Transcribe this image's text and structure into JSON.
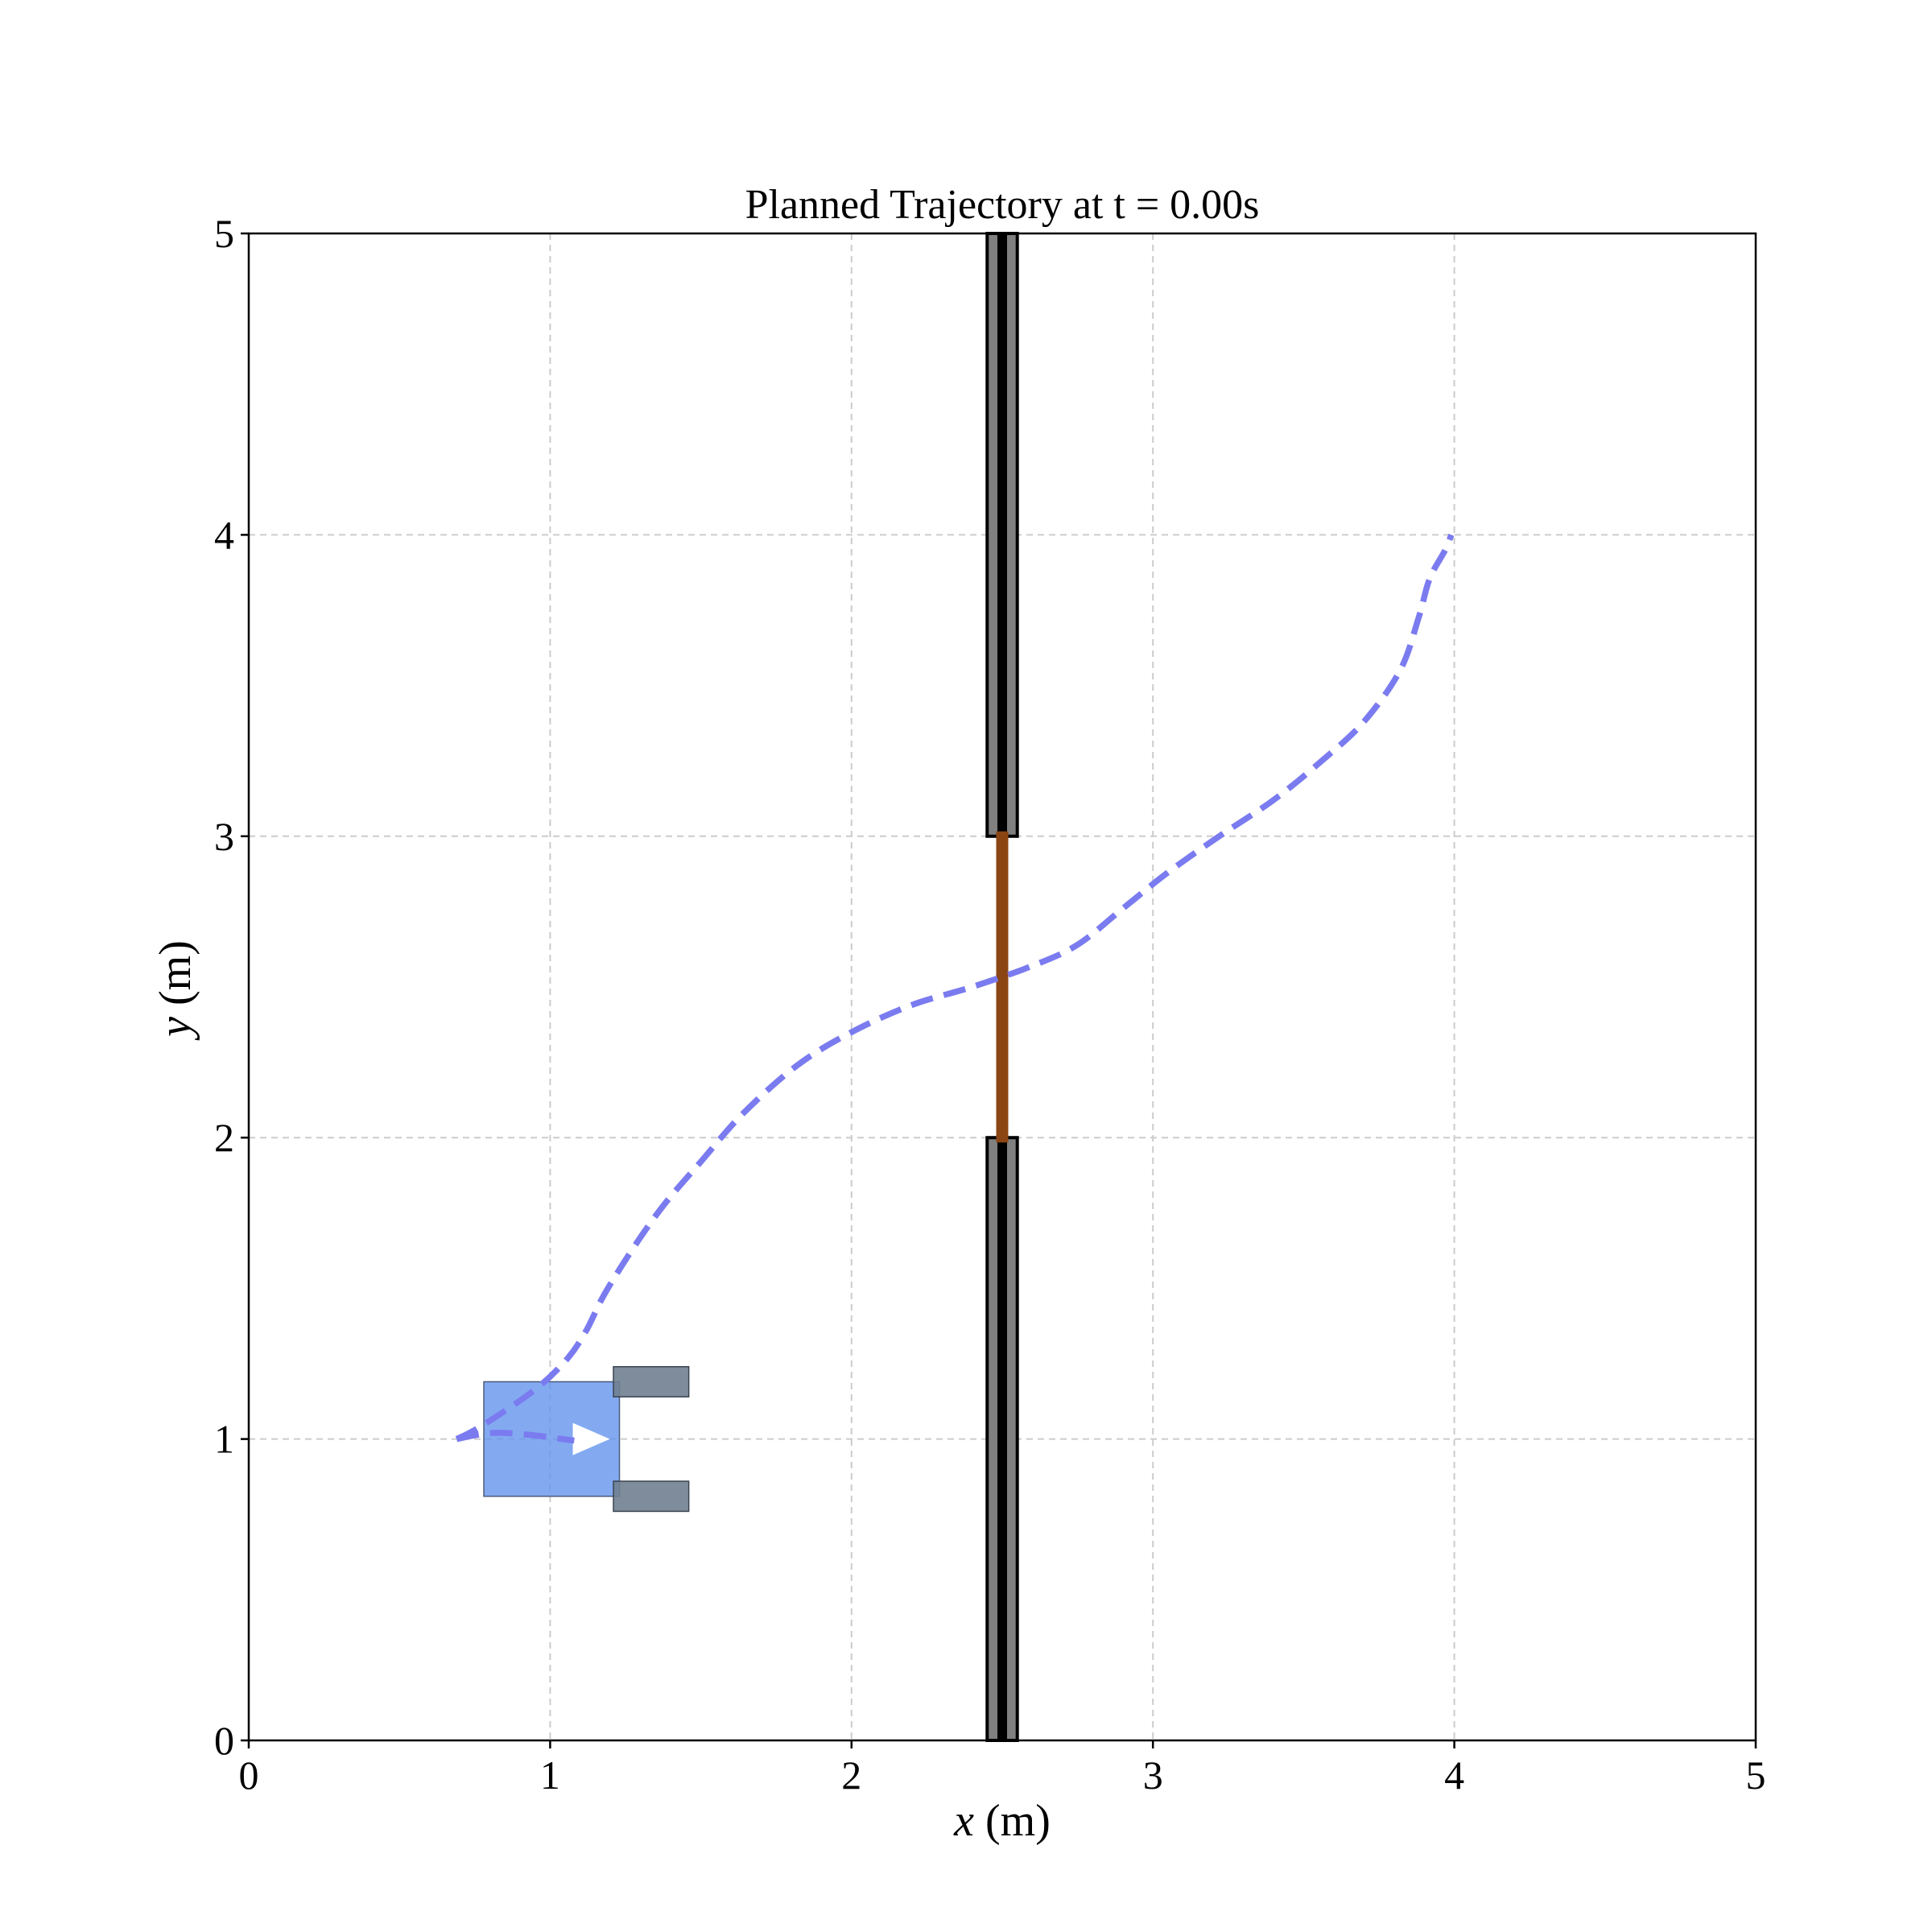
{
  "chart_data": {
    "type": "line",
    "title": "Planned Trajectory at t = 0.00s",
    "xlabel_var": "x",
    "xlabel_unit": " (m)",
    "ylabel_var": "y",
    "ylabel_unit": " (m)",
    "xlim": [
      0,
      5
    ],
    "ylim": [
      0,
      5
    ],
    "xticks": [
      "0",
      "1",
      "2",
      "3",
      "4",
      "5"
    ],
    "yticks": [
      "0",
      "1",
      "2",
      "3",
      "4",
      "5"
    ],
    "grid": true,
    "series": [
      {
        "style": "dashed",
        "color": "#7b7bf0",
        "x": [
          0.69,
          0.75,
          0.86,
          0.97,
          1.06,
          1.12,
          1.18,
          1.28,
          1.38,
          1.5,
          1.64,
          1.82,
          2.0,
          2.2,
          2.4,
          2.6,
          2.75,
          2.9,
          3.05,
          3.22,
          3.4,
          3.56,
          3.7,
          3.82,
          3.88,
          3.91,
          3.93,
          3.97,
          3.99
        ],
        "y": [
          1.0,
          1.03,
          1.1,
          1.18,
          1.27,
          1.36,
          1.48,
          1.64,
          1.78,
          1.92,
          2.08,
          2.24,
          2.35,
          2.44,
          2.5,
          2.57,
          2.64,
          2.76,
          2.88,
          3.0,
          3.12,
          3.25,
          3.38,
          3.55,
          3.72,
          3.83,
          3.88,
          3.95,
          4.0
        ]
      },
      {
        "style": "dashed",
        "color": "#7b7bf0",
        "x": [
          0.69,
          0.8,
          0.92,
          1.04,
          1.08
        ],
        "y": [
          1.0,
          1.02,
          1.015,
          1.0,
          0.995
        ]
      }
    ],
    "walls": [
      {
        "x": 2.5,
        "y": [
          0,
          2
        ],
        "width": 0.1,
        "color": "#000000",
        "inner_color": "#808080"
      },
      {
        "x": 2.5,
        "y": [
          3,
          5
        ],
        "width": 0.1,
        "color": "#000000",
        "inner_color": "#808080"
      }
    ],
    "door": {
      "x": 2.5,
      "y": [
        2,
        3
      ],
      "color": "#8b4513"
    },
    "robot": {
      "body": {
        "x": [
          0.78,
          1.23
        ],
        "y": [
          0.81,
          1.19
        ],
        "color": "#6495ed"
      },
      "grippers": [
        {
          "x": [
            1.21,
            1.46
          ],
          "y": [
            1.14,
            1.24
          ],
          "color": "#708090"
        },
        {
          "x": [
            1.21,
            1.46
          ],
          "y": [
            0.76,
            0.86
          ],
          "color": "#708090"
        }
      ],
      "heading_arrow": {
        "x": 1.15,
        "y": 1.0,
        "color": "#ffffff"
      }
    }
  }
}
